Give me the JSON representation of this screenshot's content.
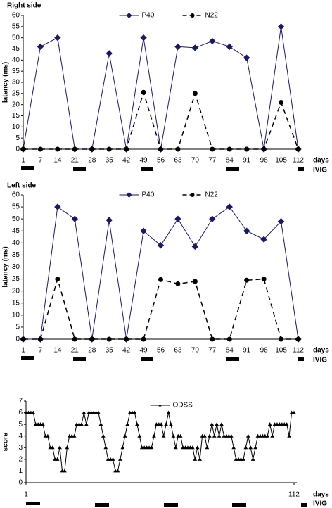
{
  "chart_data": [
    {
      "type": "line",
      "title": "Right side",
      "y_label": "latency (ms)",
      "x_label": "days",
      "annotation": "IVIG",
      "categories": [
        "1",
        "7",
        "14",
        "21",
        "28",
        "35",
        "42",
        "49",
        "56",
        "63",
        "70",
        "77",
        "84",
        "91",
        "98",
        "105",
        "112"
      ],
      "series": [
        {
          "name": "P40",
          "color": "#1a1a5e",
          "marker": "diamond",
          "dash": false,
          "values": [
            0,
            46,
            50,
            0,
            0,
            43,
            0,
            50,
            0,
            46,
            45.5,
            48.5,
            46,
            41,
            0,
            55,
            0
          ]
        },
        {
          "name": "N22",
          "color": "#000000",
          "marker": "circle",
          "dash": true,
          "values": [
            0,
            0,
            0,
            0,
            0,
            0,
            0,
            25.5,
            0,
            0,
            25,
            0,
            0,
            0,
            0,
            21,
            0
          ]
        }
      ],
      "ylim": [
        0,
        60
      ],
      "yticks": [
        0,
        5,
        10,
        15,
        20,
        25,
        30,
        35,
        40,
        45,
        50,
        55,
        60
      ],
      "legend": "top"
    },
    {
      "type": "line",
      "title": "Left side",
      "y_label": "latency (ms)",
      "x_label": "days",
      "annotation": "IVIG",
      "categories": [
        "1",
        "7",
        "14",
        "21",
        "28",
        "35",
        "42",
        "49",
        "56",
        "63",
        "70",
        "77",
        "84",
        "91",
        "98",
        "105",
        "112"
      ],
      "series": [
        {
          "name": "P40",
          "color": "#1a1a5e",
          "marker": "diamond",
          "dash": false,
          "values": [
            0,
            0,
            55,
            50,
            0,
            49.5,
            0,
            45,
            39,
            50,
            38.5,
            50,
            55,
            45,
            41.5,
            49,
            0
          ]
        },
        {
          "name": "N22",
          "color": "#000000",
          "marker": "circle",
          "dash": true,
          "values": [
            0,
            0,
            25,
            0,
            0,
            0,
            0,
            0,
            24.8,
            23,
            24,
            0,
            0,
            24.5,
            25,
            0,
            0
          ]
        }
      ],
      "ylim": [
        0,
        60
      ],
      "yticks": [
        0,
        5,
        10,
        15,
        20,
        25,
        30,
        35,
        40,
        45,
        50,
        55,
        60
      ],
      "legend": "top"
    },
    {
      "type": "line",
      "y_label": "score",
      "x_label": "days",
      "annotation": "IVIG",
      "x": [
        1,
        2,
        3,
        4,
        5,
        6,
        7,
        8,
        9,
        10,
        11,
        12,
        13,
        14,
        15,
        16,
        17,
        18,
        19,
        20,
        21,
        22,
        23,
        24,
        25,
        26,
        27,
        28,
        29,
        30,
        31,
        32,
        33,
        34,
        35,
        36,
        37,
        38,
        39,
        40,
        41,
        42,
        43,
        44,
        45,
        46,
        47,
        48,
        49,
        50,
        51,
        52,
        53,
        54,
        55,
        56,
        57,
        58,
        59,
        60,
        61,
        62,
        63,
        64,
        65,
        66,
        67,
        68,
        69,
        70,
        71,
        72,
        73,
        74,
        75,
        76,
        77,
        78,
        79,
        80,
        81,
        82,
        83,
        84,
        85,
        86,
        87,
        88,
        89,
        90,
        91,
        92,
        93,
        94,
        95,
        96,
        97,
        98,
        99,
        100,
        101,
        102,
        103,
        104,
        105,
        106,
        107,
        108,
        109,
        110,
        111,
        112
      ],
      "series": [
        {
          "name": "ODSS",
          "color": "#000000",
          "marker": "triangle",
          "dash": false,
          "values": [
            6,
            6,
            6,
            6,
            5,
            5,
            5,
            5,
            4,
            4,
            3,
            3,
            2,
            2,
            3,
            1,
            1,
            3,
            4,
            4,
            4,
            5,
            5,
            5,
            6,
            5,
            6,
            6,
            6,
            6,
            6,
            5,
            4,
            3,
            2,
            2,
            2,
            1,
            1,
            2,
            3,
            4,
            5,
            6,
            6,
            6,
            5,
            4,
            3,
            3,
            3,
            3,
            3,
            4,
            5,
            5,
            5,
            4,
            5,
            6,
            5,
            4,
            3,
            4,
            4,
            3,
            3,
            3,
            3,
            3,
            2,
            3,
            2,
            4,
            4,
            3,
            4,
            5,
            4,
            5,
            4,
            5,
            4,
            4,
            4,
            4,
            3,
            2,
            2,
            2,
            2,
            3,
            4,
            3,
            2,
            3,
            4,
            4,
            4,
            4,
            4,
            5,
            4,
            5,
            5,
            5,
            5,
            5,
            5,
            4,
            6,
            6
          ]
        }
      ],
      "xlim": [
        1,
        112
      ],
      "xticks": [
        1,
        112
      ],
      "ylim": [
        0,
        7
      ],
      "yticks": [
        0,
        1,
        2,
        3,
        4,
        5,
        6,
        7
      ],
      "legend": "top"
    }
  ]
}
